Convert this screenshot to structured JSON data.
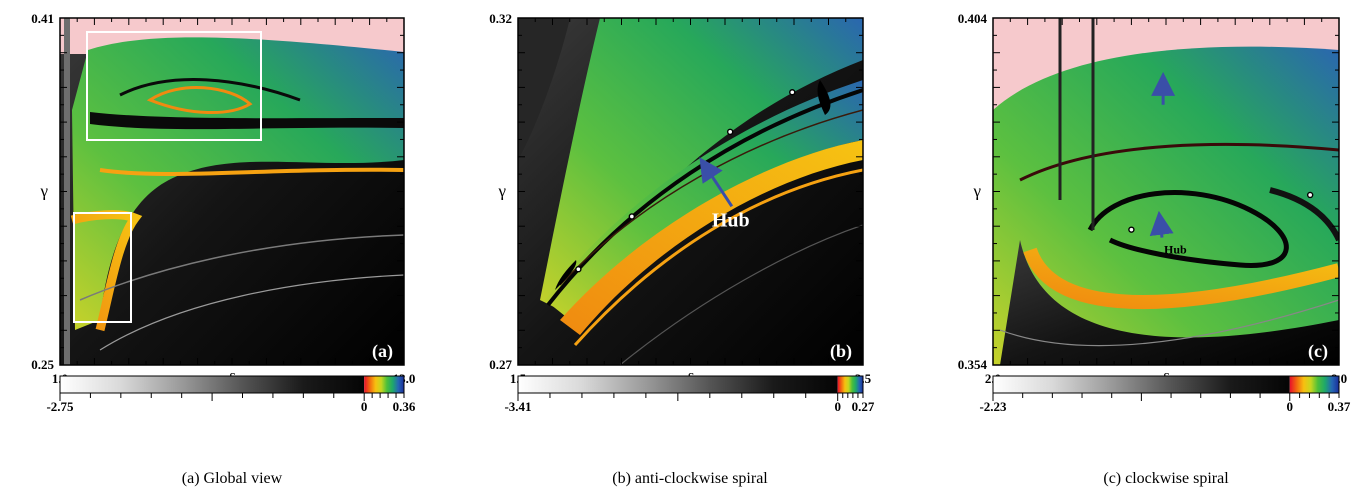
{
  "colors": {
    "background": "#ffffff",
    "pink_region": "#f6c9cc",
    "zero_stop": "#f0182c",
    "box_outline": "#ffffff",
    "arrow": "#3a4fa8",
    "gradient_negative": [
      "#ffffff",
      "#d9d9d9",
      "#9a9a9a",
      "#555555",
      "#1a1a1a",
      "#050505"
    ],
    "gradient_positive": [
      "#e8102a",
      "#f26a0f",
      "#f7c010",
      "#c6d61f",
      "#4cbf3a",
      "#1ea86a",
      "#2566b4",
      "#1a2d9a"
    ]
  },
  "chart_data": [
    {
      "type": "heatmap",
      "title": "",
      "caption": "(a) Global view",
      "panel_tag": "(a)",
      "xlabel": "δ",
      "ylabel": "γ",
      "xlim": [
        1.0,
        13.0
      ],
      "ylim": [
        0.25,
        0.41
      ],
      "x_tick_labels": [
        "1.0",
        "13.0"
      ],
      "y_tick_labels": [
        "0.25",
        "0.41"
      ],
      "colorbar": {
        "min_label": "-2.75",
        "mid_label": "0",
        "max_label": "0.36",
        "range": [
          -2.75,
          0.36
        ]
      },
      "zoom_boxes": [
        {
          "name": "clockwise spiral region",
          "x": [
            2.0,
            8.0
          ],
          "y": [
            0.354,
            0.404
          ]
        },
        {
          "name": "anti-clockwise spiral region",
          "x": [
            1.5,
            3.5
          ],
          "y": [
            0.27,
            0.32
          ]
        }
      ]
    },
    {
      "type": "heatmap",
      "title": "",
      "caption": "(b) anti-clockwise spiral",
      "panel_tag": "(b)",
      "xlabel": "δ",
      "ylabel": "γ",
      "xlim": [
        1.5,
        3.5
      ],
      "ylim": [
        0.27,
        0.32
      ],
      "x_tick_labels": [
        "1.5",
        "3.5"
      ],
      "y_tick_labels": [
        "0.27",
        "0.32"
      ],
      "colorbar": {
        "min_label": "-3.41",
        "mid_label": "0",
        "max_label": "0.27",
        "range": [
          -3.41,
          0.27
        ]
      },
      "annotations": [
        {
          "text": "Hub",
          "x": 2.67,
          "y": 0.292,
          "arrow_to": [
            2.59,
            0.2985
          ]
        }
      ],
      "hub_points": [
        [
          1.85,
          0.2838
        ],
        [
          2.16,
          0.2914
        ],
        [
          2.73,
          0.3036
        ],
        [
          3.09,
          0.3093
        ]
      ]
    },
    {
      "type": "heatmap",
      "title": "",
      "caption": "(c) clockwise spiral",
      "panel_tag": "(c)",
      "xlabel": "δ",
      "ylabel": "γ",
      "xlim": [
        2.0,
        8.0
      ],
      "ylim": [
        0.354,
        0.404
      ],
      "x_tick_labels": [
        "2.0",
        "8.0"
      ],
      "y_tick_labels": [
        "0.354",
        "0.404"
      ],
      "colorbar": {
        "min_label": "-2.23",
        "mid_label": "0",
        "max_label": "0.37",
        "range": [
          -2.23,
          0.37
        ]
      },
      "annotations": [
        {
          "text": "Hub",
          "x": 5.0,
          "y": 0.3715,
          "arrow_to": [
            4.9,
            0.3745
          ]
        },
        {
          "text": "",
          "x": 4.95,
          "y": 0.3915,
          "arrow_to": [
            4.95,
            0.3945
          ]
        }
      ],
      "hub_points": [
        [
          4.4,
          0.3735
        ],
        [
          7.5,
          0.3785
        ]
      ]
    }
  ]
}
